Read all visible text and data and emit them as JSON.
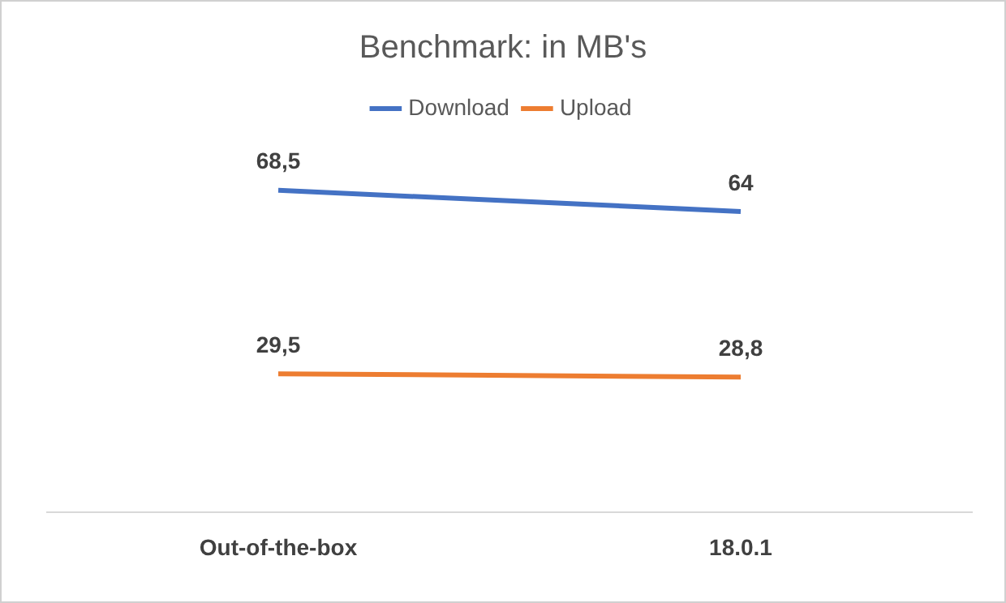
{
  "chart_data": {
    "type": "line",
    "title": "Benchmark: in MB's",
    "categories": [
      "Out-of-the-box",
      "18.0.1"
    ],
    "series": [
      {
        "name": "Download",
        "color": "#4472c4",
        "values": [
          68.5,
          64
        ],
        "value_labels": [
          "68,5",
          "64"
        ]
      },
      {
        "name": "Upload",
        "color": "#ed7d31",
        "values": [
          29.5,
          28.8
        ],
        "value_labels": [
          "29,5",
          "28,8"
        ]
      }
    ],
    "tick_labels": "x",
    "grid": false,
    "legend": "top",
    "marker": "none",
    "line_style": "solid"
  }
}
